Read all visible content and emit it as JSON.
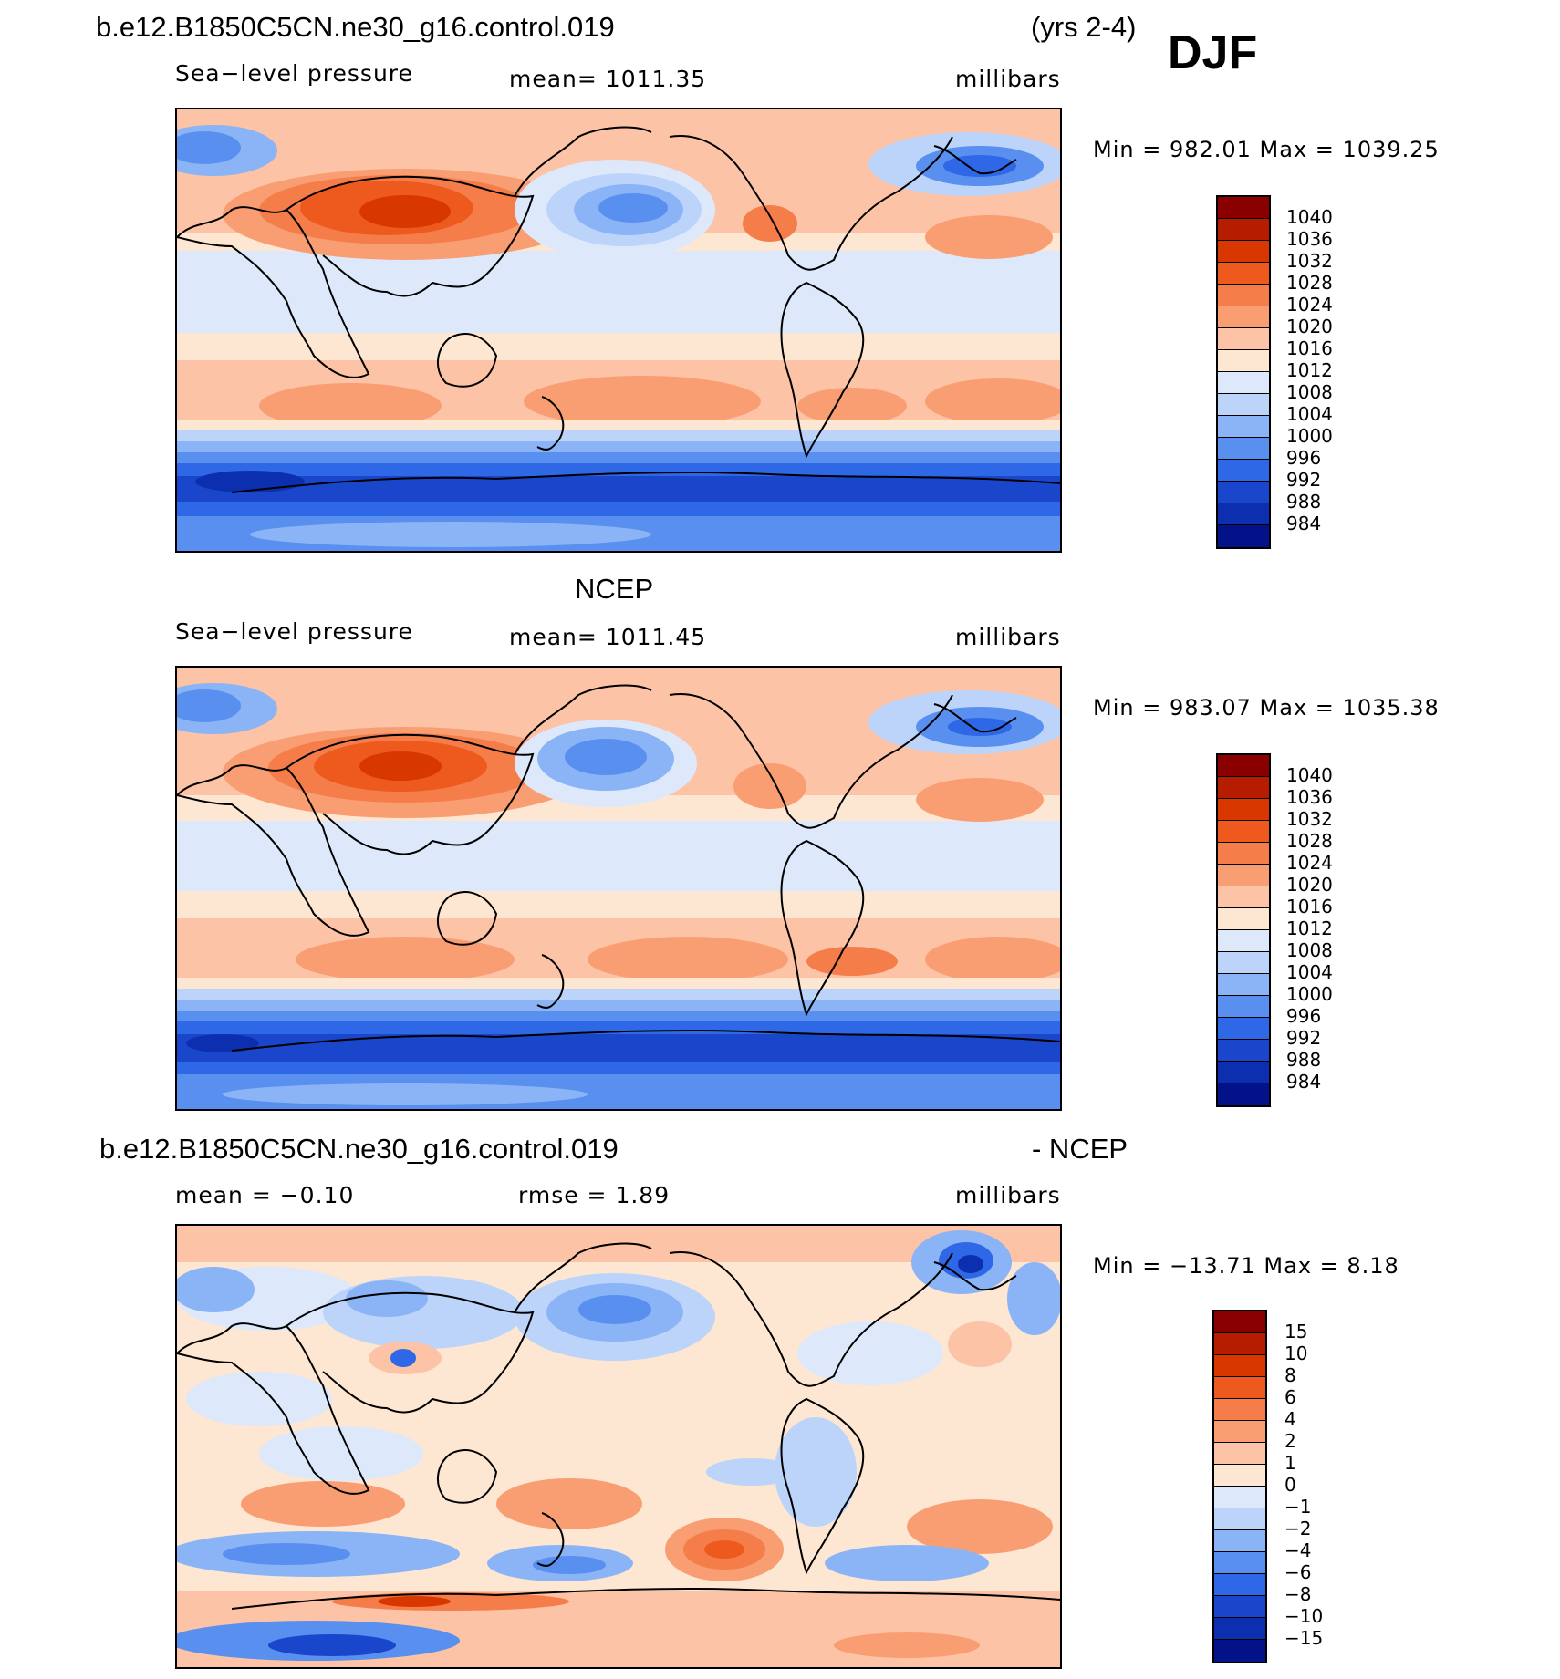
{
  "figure": {
    "title_case": "b.e12.B1850C5CN.ne30_g16.control.019",
    "years": "(yrs 2-4)",
    "season": "DJF"
  },
  "panels": [
    {
      "id": "model",
      "heading": "",
      "left_label": "Sea−level pressure",
      "center_label": "mean=  1011.35",
      "right_label": "millibars",
      "minmax": "Min  =  982.01  Max  =  1039.25",
      "levels": [
        "1040",
        "1036",
        "1032",
        "1028",
        "1024",
        "1020",
        "1016",
        "1012",
        "1008",
        "1004",
        "1000",
        "996",
        "992",
        "988",
        "984"
      ],
      "colors": [
        "#8a0000",
        "#b51c00",
        "#d83800",
        "#ee5a1e",
        "#f57d4a",
        "#f99e72",
        "#fcc3a6",
        "#fde6d2",
        "#dde9fb",
        "#bcd4fa",
        "#8ab4f6",
        "#5990ef",
        "#2e68e6",
        "#1a46cc",
        "#0c2fb0",
        "#04128a"
      ]
    },
    {
      "id": "obs",
      "heading": "NCEP",
      "left_label": "Sea−level pressure",
      "center_label": "mean=  1011.45",
      "right_label": "millibars",
      "minmax": "Min  =  983.07  Max  =  1035.38",
      "levels": [
        "1040",
        "1036",
        "1032",
        "1028",
        "1024",
        "1020",
        "1016",
        "1012",
        "1008",
        "1004",
        "1000",
        "996",
        "992",
        "988",
        "984"
      ],
      "colors": [
        "#8a0000",
        "#b51c00",
        "#d83800",
        "#ee5a1e",
        "#f57d4a",
        "#f99e72",
        "#fcc3a6",
        "#fde6d2",
        "#dde9fb",
        "#bcd4fa",
        "#8ab4f6",
        "#5990ef",
        "#2e68e6",
        "#1a46cc",
        "#0c2fb0",
        "#04128a"
      ]
    },
    {
      "id": "diff",
      "heading_left": "b.e12.B1850C5CN.ne30_g16.control.019",
      "heading_right": "- NCEP",
      "left_label": "mean  =    −0.10",
      "center_label": "rmse  =     1.89",
      "right_label": "millibars",
      "minmax": "Min  =  −13.71  Max  =     8.18",
      "levels": [
        "15",
        "10",
        "8",
        "6",
        "4",
        "2",
        "1",
        "0",
        "−1",
        "−2",
        "−4",
        "−6",
        "−8",
        "−10",
        "−15"
      ],
      "colors": [
        "#8a0000",
        "#b51c00",
        "#d83800",
        "#ee5a1e",
        "#f57d4a",
        "#f99e72",
        "#fcc3a6",
        "#fde6d2",
        "#dde9fb",
        "#bcd4fa",
        "#8ab4f6",
        "#5990ef",
        "#2e68e6",
        "#1a46cc",
        "#0c2fb0",
        "#04128a"
      ]
    }
  ]
}
